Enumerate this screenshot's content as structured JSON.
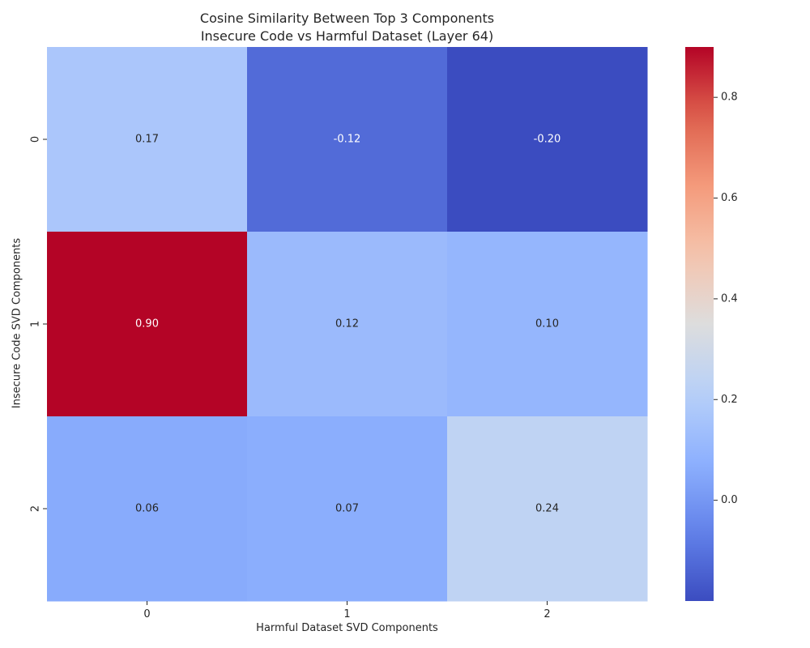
{
  "chart_data": {
    "type": "heatmap",
    "title": [
      "Cosine Similarity Between Top 3 Components",
      "Insecure Code vs Harmful Dataset (Layer 64)"
    ],
    "xlabel": "Harmful Dataset SVD Components",
    "ylabel": "Insecure Code SVD Components",
    "x_categories": [
      "0",
      "1",
      "2"
    ],
    "y_categories": [
      "0",
      "1",
      "2"
    ],
    "values": [
      [
        0.17,
        -0.12,
        -0.2
      ],
      [
        0.9,
        0.12,
        0.1
      ],
      [
        0.06,
        0.07,
        0.24
      ]
    ],
    "annotations": [
      [
        "0.17",
        "-0.12",
        "-0.20"
      ],
      [
        "0.90",
        "0.12",
        "0.10"
      ],
      [
        "0.06",
        "0.07",
        "0.24"
      ]
    ],
    "colormap": "coolwarm",
    "vmin": -0.2,
    "vmax": 0.9,
    "colorbar_ticks": [
      0.0,
      0.2,
      0.4,
      0.6,
      0.8
    ],
    "colorbar_tick_labels": [
      "0.0",
      "0.2",
      "0.4",
      "0.6",
      "0.8"
    ]
  }
}
